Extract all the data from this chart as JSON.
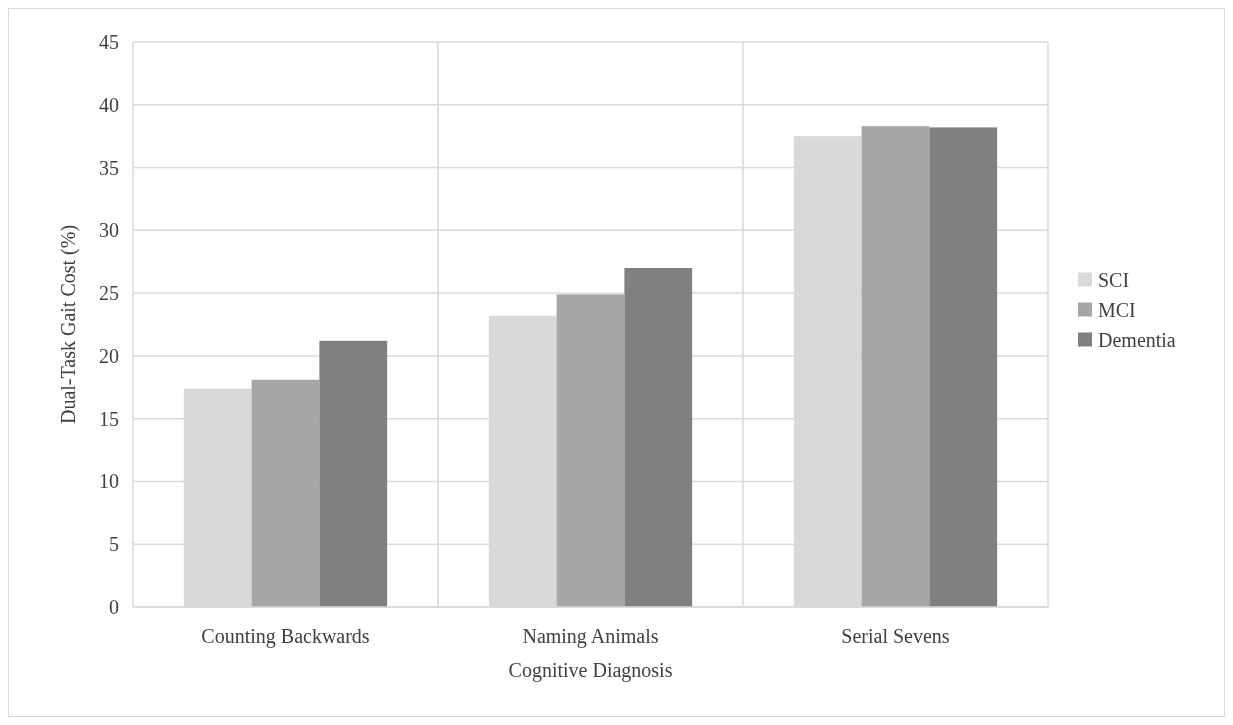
{
  "chart_data": {
    "type": "bar",
    "xlabel": "Cognitive Diagnosis",
    "ylabel": "Dual-Task Gait Cost (%)",
    "categories": [
      "Counting Backwards",
      "Naming Animals",
      "Serial Sevens"
    ],
    "series": [
      {
        "name": "SCI",
        "color": "#d9d9d9",
        "values": [
          17.4,
          23.2,
          37.5
        ]
      },
      {
        "name": "MCI",
        "color": "#a6a6a6",
        "values": [
          18.1,
          24.9,
          38.3
        ]
      },
      {
        "name": "Dementia",
        "color": "#808080",
        "values": [
          21.2,
          27.0,
          38.2
        ]
      }
    ],
    "ylim": [
      0,
      45
    ],
    "yticks": [
      0,
      5,
      10,
      15,
      20,
      25,
      30,
      35,
      40,
      45
    ],
    "grid": true,
    "legend": "right"
  }
}
